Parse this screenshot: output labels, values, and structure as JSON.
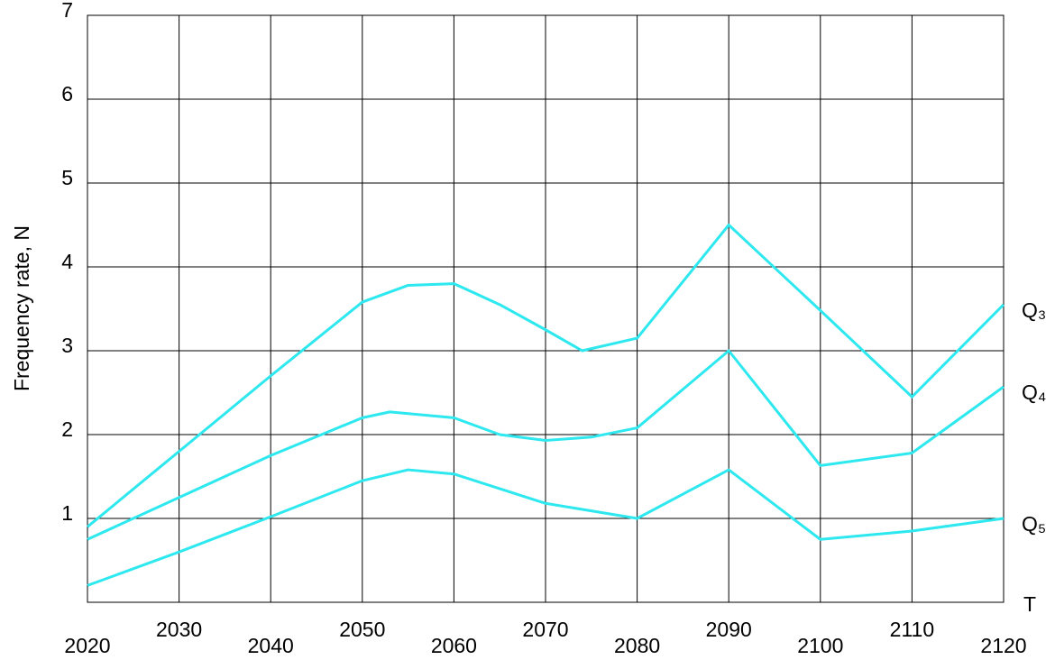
{
  "chart_data": {
    "type": "line",
    "y_label": "Frequency rate, N",
    "x_label": "T",
    "xlim": [
      2020,
      2120
    ],
    "xticks": [
      2020,
      2030,
      2040,
      2050,
      2060,
      2070,
      2080,
      2090,
      2100,
      2110,
      2120
    ],
    "ylim": [
      0,
      7
    ],
    "yticks": [
      1,
      2,
      3,
      4,
      5,
      6,
      7
    ],
    "grid": true,
    "series": [
      {
        "name": "Q₃",
        "color": "#2ee8f0",
        "x": [
          2020,
          2030,
          2040,
          2050,
          2055,
          2060,
          2065,
          2070,
          2074,
          2080,
          2090,
          2100,
          2110,
          2120
        ],
        "values": [
          0.9,
          1.8,
          2.7,
          3.58,
          3.78,
          3.8,
          3.55,
          3.25,
          3.0,
          3.15,
          4.5,
          3.48,
          2.45,
          3.55
        ]
      },
      {
        "name": "Q₄",
        "color": "#2ee8f0",
        "x": [
          2020,
          2030,
          2040,
          2050,
          2053,
          2060,
          2065,
          2070,
          2075,
          2080,
          2090,
          2100,
          2110,
          2120
        ],
        "values": [
          0.75,
          1.25,
          1.75,
          2.2,
          2.27,
          2.2,
          2.0,
          1.93,
          1.97,
          2.08,
          3.0,
          1.63,
          1.78,
          2.57
        ]
      },
      {
        "name": "Q₅",
        "color": "#2ee8f0",
        "x": [
          2020,
          2030,
          2040,
          2050,
          2055,
          2060,
          2070,
          2080,
          2090,
          2100,
          2110,
          2120
        ],
        "values": [
          0.2,
          0.6,
          1.02,
          1.45,
          1.58,
          1.53,
          1.18,
          1.0,
          1.58,
          0.75,
          0.85,
          1.0
        ]
      }
    ]
  }
}
